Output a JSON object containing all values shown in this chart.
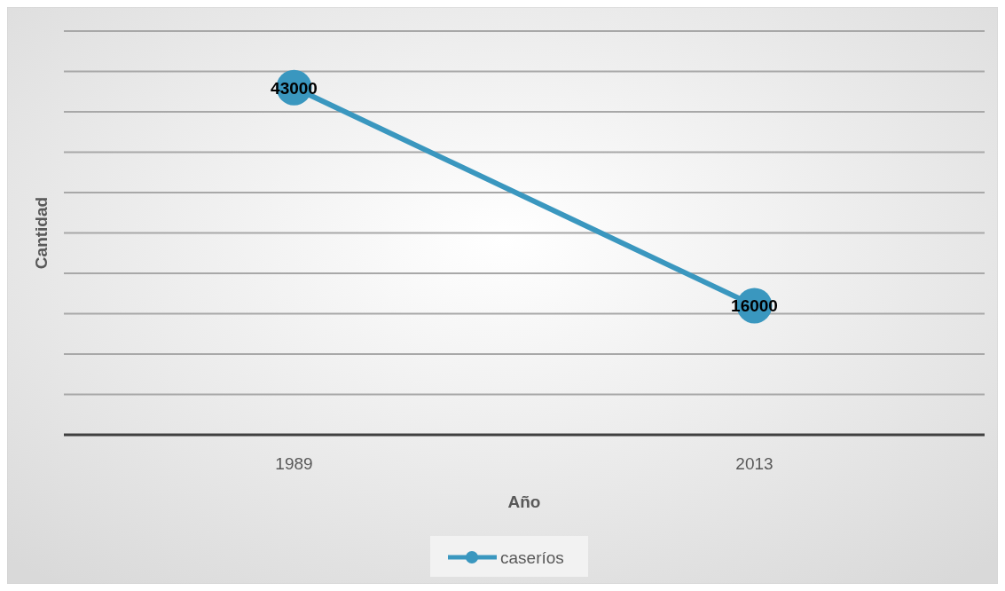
{
  "chart_data": {
    "type": "line",
    "xlabel": "Año",
    "ylabel": "Cantidad",
    "categories": [
      "1989",
      "2013"
    ],
    "series": [
      {
        "name": "caseríos",
        "color": "#3a97bf",
        "values": [
          43000,
          16000
        ]
      }
    ],
    "ylim": [
      0,
      50000
    ],
    "yticks": [
      {
        "value": 0,
        "label": null
      },
      {
        "value": 5000,
        "label": null
      },
      {
        "value": 10000,
        "label": null
      },
      {
        "value": 15000,
        "label": null
      },
      {
        "value": 20000,
        "label": null
      },
      {
        "value": 25000,
        "label": null
      },
      {
        "value": 30000,
        "label": null
      },
      {
        "value": 35000,
        "label": null
      },
      {
        "value": 40000,
        "label": null
      },
      {
        "value": 45000,
        "label": null
      },
      {
        "value": 50000,
        "label": null
      }
    ],
    "tick_labels": "x",
    "grid": "y",
    "legend": "bottom",
    "marker": "circle",
    "line_style": "solid",
    "data_labels": true
  }
}
